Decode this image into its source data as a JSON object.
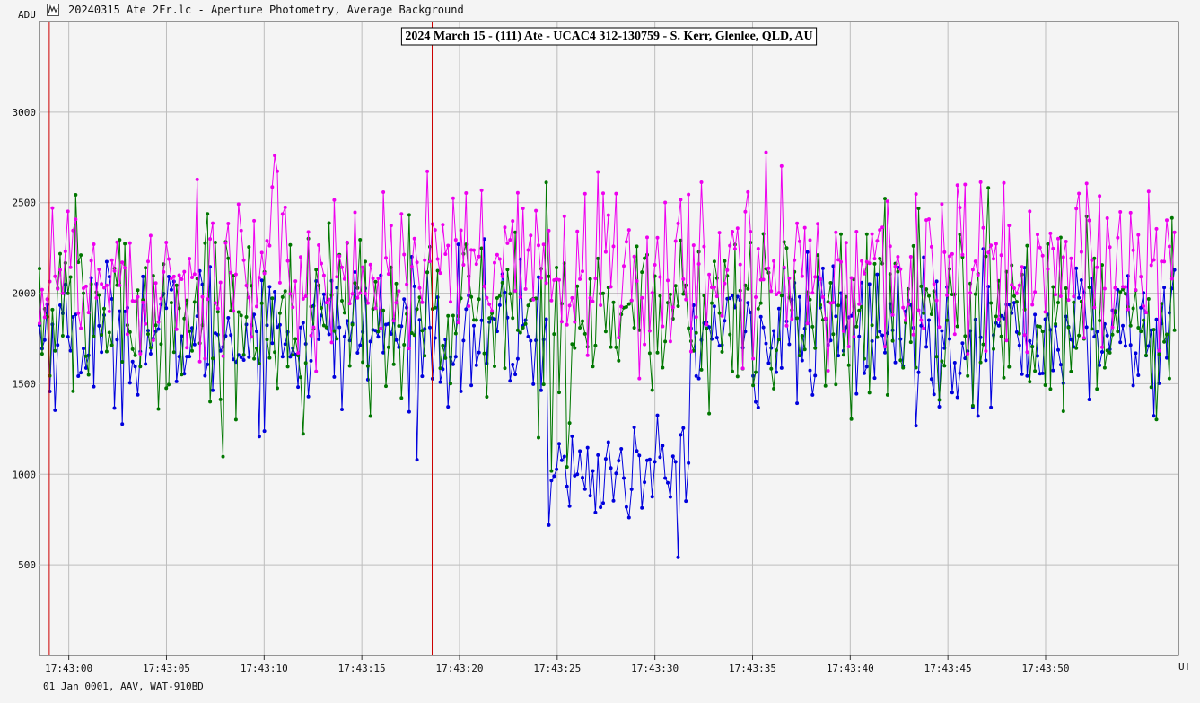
{
  "window": {
    "title": "20240315 Ate 2Fr.lc - Aperture Photometry, Average Background",
    "icon": "photometry-app-icon"
  },
  "footer": {
    "text": "01 Jan 0001, AAV, WAT-910BD"
  },
  "chart_data": {
    "type": "line",
    "title": "2024 March 15 - (111) Ate - UCAC4 312-130759 - S. Kerr, Glenlee, QLD, AU",
    "ylabel": "ADU",
    "xlabel": "UT",
    "xlim": [
      -1.5,
      56.8
    ],
    "ylim": [
      0,
      3500
    ],
    "yticks": [
      500,
      1000,
      1500,
      2000,
      2500,
      3000
    ],
    "xticks": [
      {
        "t": 0,
        "label": "17:43:00"
      },
      {
        "t": 5,
        "label": "17:43:05"
      },
      {
        "t": 10,
        "label": "17:43:10"
      },
      {
        "t": 15,
        "label": "17:43:15"
      },
      {
        "t": 20,
        "label": "17:43:20"
      },
      {
        "t": 25,
        "label": "17:43:25"
      },
      {
        "t": 30,
        "label": "17:43:30"
      },
      {
        "t": 35,
        "label": "17:43:35"
      },
      {
        "t": 40,
        "label": "17:43:40"
      },
      {
        "t": 45,
        "label": "17:43:45"
      },
      {
        "t": 50,
        "label": "17:43:50"
      }
    ],
    "grid": true,
    "legend": "none",
    "markers": [
      -1.0,
      18.6
    ],
    "marker_color": "#cc0000",
    "x_start": -1.5,
    "x_end": 56.6,
    "n_points": 440,
    "series": [
      {
        "color": "#0000dd",
        "mean": 1780,
        "sd": 200,
        "dip": {
          "start": 24.5,
          "end": 31.8,
          "level": 1000,
          "sd": 150
        }
      },
      {
        "color": "#007700",
        "mean": 1880,
        "sd": 260
      },
      {
        "color": "#ee00ee",
        "mean": 2120,
        "sd": 250
      }
    ],
    "colors": {
      "background": "#f4f4f4",
      "grid": "#bdbdbd",
      "axis": "#333333"
    }
  }
}
